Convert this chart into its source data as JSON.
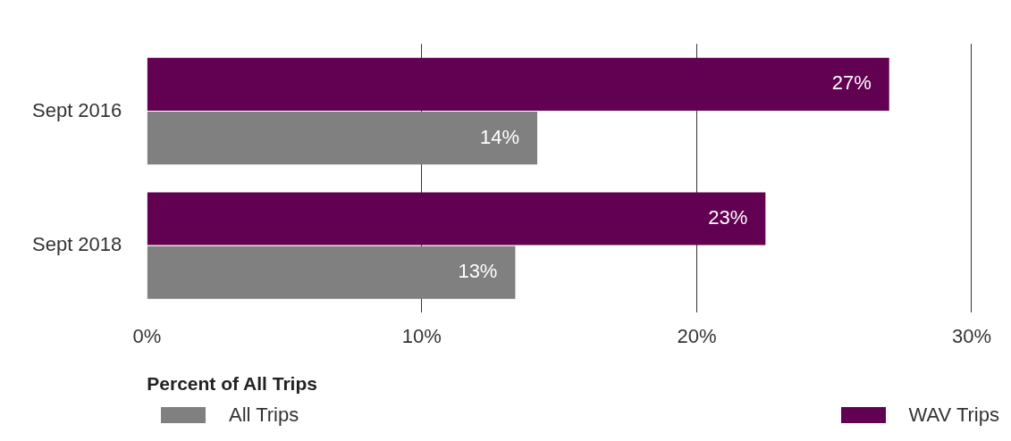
{
  "chart_data": {
    "type": "bar",
    "orientation": "horizontal",
    "categories": [
      "Sept 2016",
      "Sept 2018"
    ],
    "series": [
      {
        "name": "WAV Trips",
        "color": "#620051",
        "values": [
          27,
          22.5
        ],
        "value_labels": [
          "27%",
          "23%"
        ]
      },
      {
        "name": "All Trips",
        "color": "#808080",
        "values": [
          14.2,
          13.4
        ],
        "value_labels": [
          "14%",
          "13%"
        ]
      }
    ],
    "xlabel": "Percent of All Trips",
    "xlim": [
      0,
      30
    ],
    "xticks": [
      {
        "value": 0,
        "label": "0%"
      },
      {
        "value": 10,
        "label": "10%"
      },
      {
        "value": 20,
        "label": "20%"
      },
      {
        "value": 30,
        "label": "30%"
      }
    ],
    "grid": "x",
    "legend": "bottom"
  }
}
